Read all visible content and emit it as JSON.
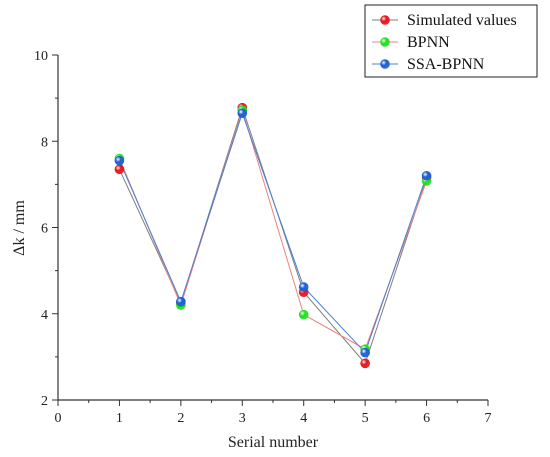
{
  "chart_data": {
    "type": "line",
    "title": "",
    "xlabel": "Serial number",
    "ylabel": "Δk / mm",
    "xlim": [
      0,
      7
    ],
    "ylim": [
      2,
      10
    ],
    "xticks": [
      0,
      1,
      2,
      3,
      4,
      5,
      6,
      7
    ],
    "yticks": [
      2,
      4,
      6,
      8,
      10
    ],
    "grid": false,
    "legend_position": "top-right",
    "x": [
      1,
      2,
      3,
      4,
      5,
      6
    ],
    "series": [
      {
        "name": "Simulated values",
        "color": "#7f7f7f",
        "marker_color": "#e8141c",
        "values": [
          7.35,
          4.25,
          8.78,
          4.5,
          2.85,
          7.15
        ]
      },
      {
        "name": "BPNN",
        "color": "#f08080",
        "marker_color": "#22e022",
        "values": [
          7.6,
          4.2,
          8.72,
          3.98,
          3.18,
          7.08
        ]
      },
      {
        "name": "SSA-BPNN",
        "color": "#4a7fd4",
        "marker_color": "#1f5fd4",
        "values": [
          7.55,
          4.28,
          8.65,
          4.62,
          3.1,
          7.2
        ]
      }
    ]
  }
}
